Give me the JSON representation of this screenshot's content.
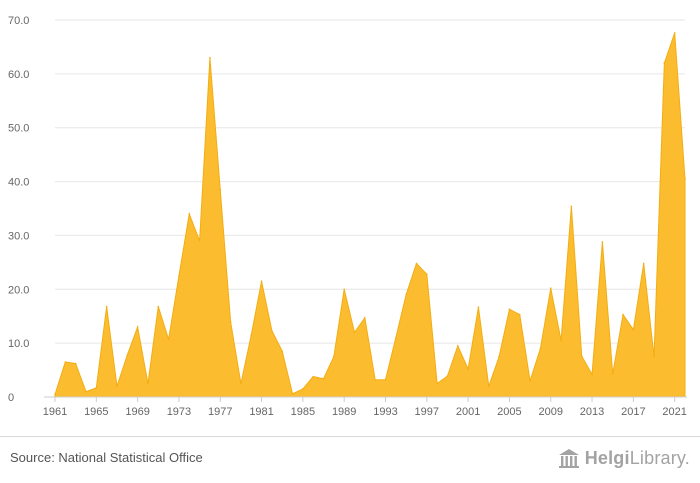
{
  "chart_data": {
    "type": "area",
    "color": "#fbbd2f",
    "edge_color": "#f3ad12",
    "grid": true,
    "legend": "none",
    "ylim": [
      0,
      70
    ],
    "yticks": [
      "0",
      "10.0",
      "20.0",
      "30.0",
      "40.0",
      "50.0",
      "60.0",
      "70.0"
    ],
    "xticks": [
      "1961",
      "1965",
      "1969",
      "1973",
      "1977",
      "1981",
      "1985",
      "1989",
      "1993",
      "1997",
      "2001",
      "2005",
      "2009",
      "2013",
      "2017",
      "2021"
    ],
    "x": [
      1961,
      1962,
      1963,
      1964,
      1965,
      1966,
      1967,
      1968,
      1969,
      1970,
      1971,
      1972,
      1973,
      1974,
      1975,
      1976,
      1977,
      1978,
      1979,
      1980,
      1981,
      1982,
      1983,
      1984,
      1985,
      1986,
      1987,
      1988,
      1989,
      1990,
      1991,
      1992,
      1993,
      1994,
      1995,
      1996,
      1997,
      1998,
      1999,
      2000,
      2001,
      2002,
      2003,
      2004,
      2005,
      2006,
      2007,
      2008,
      2009,
      2010,
      2011,
      2012,
      2013,
      2014,
      2015,
      2016,
      2017,
      2018,
      2019,
      2020,
      2021,
      2022
    ],
    "values": [
      0.5,
      6.5,
      6.2,
      1.0,
      1.7,
      16.8,
      2.0,
      7.8,
      13.0,
      2.5,
      16.8,
      10.7,
      22.5,
      34.0,
      29.0,
      63.0,
      38.5,
      14.0,
      2.5,
      11.5,
      21.5,
      12.3,
      8.5,
      0.6,
      1.5,
      3.8,
      3.4,
      7.5,
      20.0,
      12.0,
      14.7,
      3.2,
      3.2,
      11.0,
      19.0,
      24.8,
      22.8,
      2.5,
      3.9,
      9.5,
      5.2,
      16.7,
      2.0,
      7.5,
      16.3,
      15.3,
      3.0,
      9.0,
      20.2,
      10.5,
      35.4,
      7.6,
      4.2,
      28.8,
      4.3,
      15.3,
      12.5,
      24.8,
      7.5,
      62.0,
      67.6,
      40.5
    ]
  },
  "footer": {
    "source": "Source: National Statistical Office",
    "brand_main": "Helgi",
    "brand_rest": "Library."
  }
}
